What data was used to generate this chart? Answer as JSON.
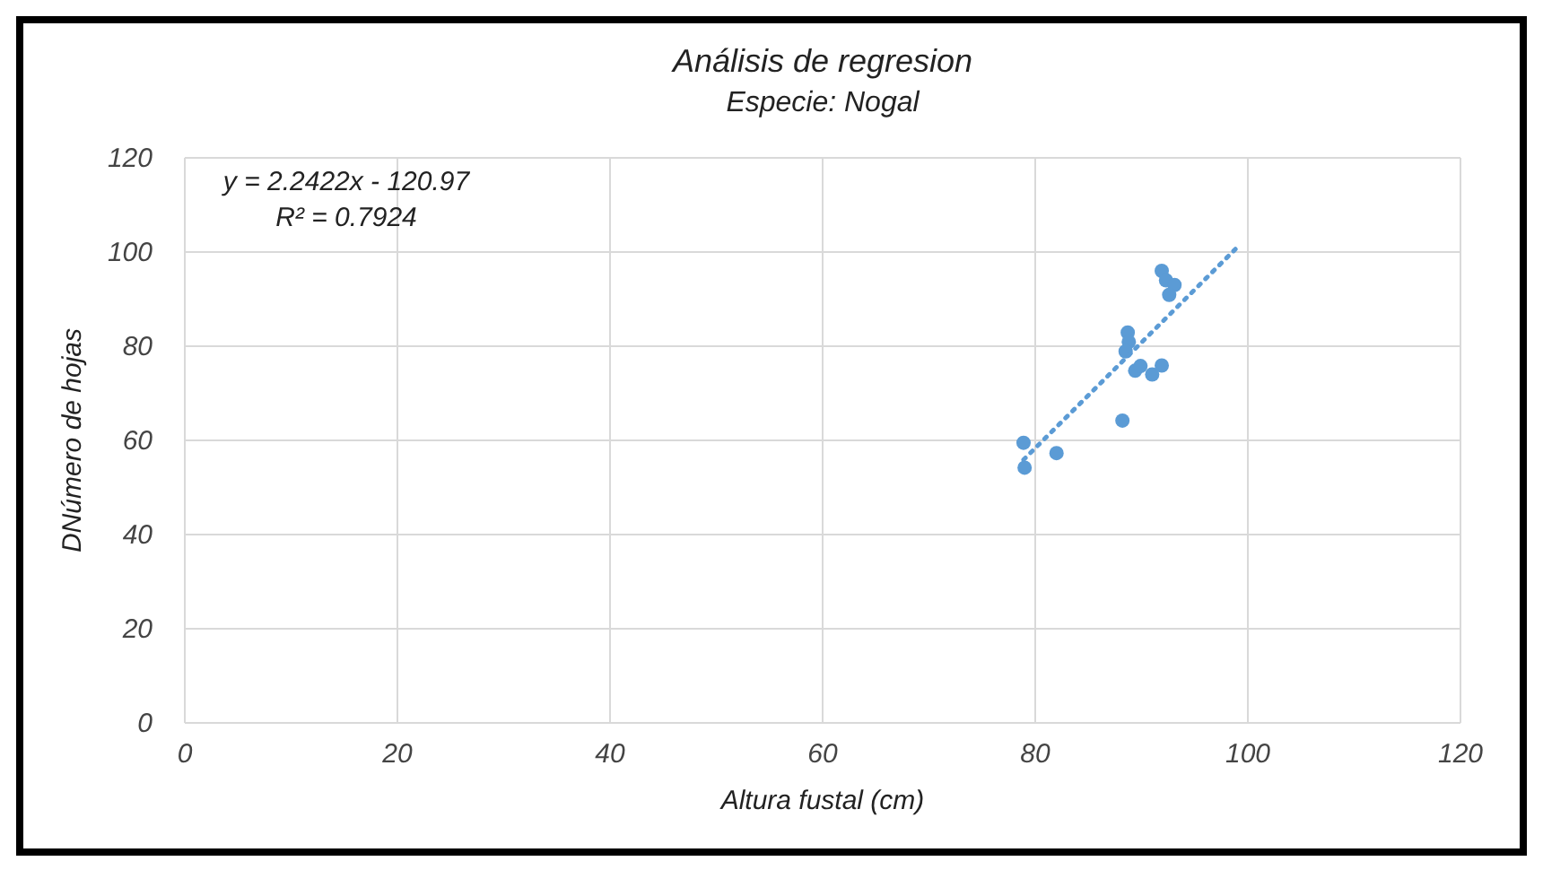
{
  "chart_data": {
    "type": "scatter",
    "title": "Análisis de regresion",
    "subtitle": "Especie: Nogal",
    "xlabel": "Altura fustal (cm)",
    "ylabel": "DNúmero de hojas",
    "annotations": [
      "y = 2.2422x - 120.97",
      "R² = 0.7924"
    ],
    "xlim": [
      0,
      120
    ],
    "xticks": [
      0,
      20,
      40,
      60,
      80,
      100,
      120
    ],
    "ylim": [
      0,
      120
    ],
    "yticks": [
      0,
      20,
      40,
      60,
      80,
      100,
      120
    ],
    "grid": true,
    "series": [
      {
        "color": "#5b9bd5",
        "marker": "circle",
        "x": [
          78.9,
          79,
          82,
          88.2,
          88.7,
          88.8,
          88.5,
          89.4,
          89.9,
          91,
          91.9,
          91.9,
          92.3,
          93.1,
          92.6
        ],
        "values": [
          59.5,
          54.2,
          57.3,
          64.2,
          82.9,
          80.9,
          78.9,
          74.8,
          75.8,
          74,
          75.9,
          96,
          94,
          93,
          90.9
        ]
      },
      {
        "type": "line",
        "color": "#5b9bd5",
        "line_style": "dotted",
        "marker": "none",
        "x": [
          78.9,
          99
        ],
        "values": [
          55.9,
          101
        ]
      }
    ]
  }
}
